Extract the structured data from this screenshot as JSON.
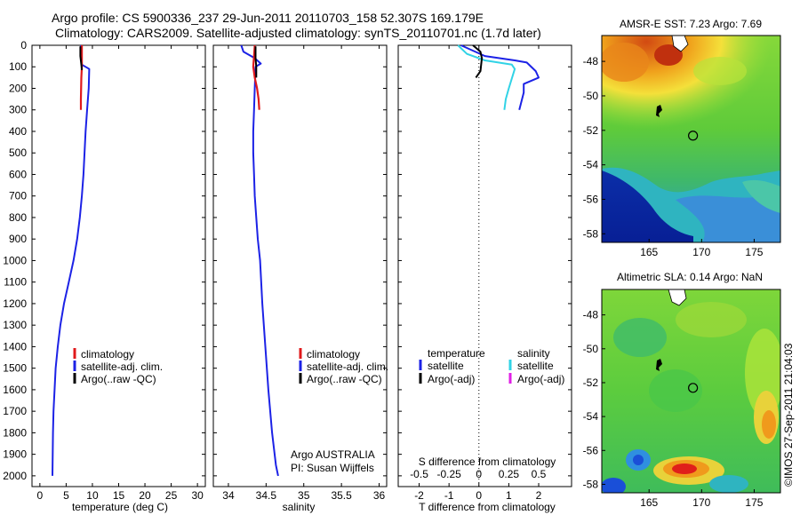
{
  "header": {
    "line1": "Argo profile: CS 5900336_237 29-Jun-2011 20110703_158 52.307S 169.179E",
    "line2": "Climatology: CARS2009. Satellite-adjusted climatology: synTS_20110701.nc (1.7d later)"
  },
  "credits": {
    "institution": "Argo AUSTRALIA",
    "pi": "PI: Susan Wijffels",
    "timestamp": "©IMOS 27-Sep-2011 21:04:03"
  },
  "colors": {
    "climatology": "#e0191b",
    "satellite": "#1c22e6",
    "argo": "#000000",
    "satellite_salinity": "#31d3e6",
    "argo_salinity": "#e01ee6"
  },
  "chart_data": [
    {
      "id": "temperature",
      "type": "line",
      "xlabel": "temperature (deg C)",
      "ylabel": "",
      "xlim": [
        -1.5,
        31.5
      ],
      "ylim": [
        2050,
        0
      ],
      "xticks": [
        0,
        5,
        10,
        15,
        20,
        25,
        30
      ],
      "yticks": [
        0,
        100,
        200,
        300,
        400,
        500,
        600,
        700,
        800,
        900,
        1000,
        1100,
        1200,
        1300,
        1400,
        1500,
        1600,
        1700,
        1800,
        1900,
        2000
      ],
      "legend": {
        "entries": [
          "climatology",
          "satellite-adj. clim.",
          "Argo(..raw -QC)"
        ],
        "placement": "lower-middle"
      },
      "series": [
        {
          "name": "satellite-adj. clim.",
          "color": "#1c22e6",
          "x": [
            7.8,
            7.9,
            8.0,
            9.4,
            9.3,
            9.0,
            8.7,
            8.5,
            8.3,
            8.0,
            7.6,
            7.1,
            6.4,
            5.5,
            4.6,
            3.9,
            3.4,
            3.0,
            2.8,
            2.6,
            2.5,
            2.4
          ],
          "y": [
            0,
            50,
            90,
            110,
            200,
            300,
            400,
            500,
            600,
            700,
            800,
            900,
            1000,
            1100,
            1200,
            1300,
            1400,
            1500,
            1600,
            1700,
            1800,
            2000
          ]
        },
        {
          "name": "climatology",
          "color": "#e0191b",
          "x": [
            8.0,
            8.0,
            7.9,
            7.8,
            7.8
          ],
          "y": [
            0,
            100,
            150,
            250,
            300
          ]
        },
        {
          "name": "Argo(..raw -QC)",
          "color": "#000000",
          "x": [
            7.7,
            7.7,
            7.9,
            8.0
          ],
          "y": [
            5,
            50,
            90,
            115
          ]
        }
      ]
    },
    {
      "id": "salinity",
      "type": "line",
      "xlabel": "salinity",
      "ylabel": "",
      "xlim": [
        33.8,
        36.1
      ],
      "ylim": [
        2050,
        0
      ],
      "xticks": [
        34,
        34.5,
        35,
        35.5,
        36
      ],
      "legend": {
        "entries": [
          "climatology",
          "satellite-adj. clim.",
          "Argo(..raw -QC)"
        ],
        "placement": "lower-middle"
      },
      "series": [
        {
          "name": "satellite-adj. clim.",
          "color": "#1c22e6",
          "x": [
            34.17,
            34.2,
            34.35,
            34.43,
            34.36,
            34.35,
            34.34,
            34.33,
            34.33,
            34.34,
            34.35,
            34.37,
            34.39,
            34.42,
            34.45,
            34.49,
            34.53,
            34.58,
            34.63,
            34.66
          ],
          "y": [
            0,
            30,
            60,
            85,
            100,
            200,
            300,
            400,
            500,
            600,
            700,
            800,
            900,
            1000,
            1200,
            1400,
            1600,
            1800,
            1950,
            2000
          ]
        },
        {
          "name": "climatology",
          "color": "#e0191b",
          "x": [
            34.35,
            34.34,
            34.33,
            34.35,
            34.38,
            34.4,
            34.41
          ],
          "y": [
            0,
            50,
            100,
            150,
            200,
            250,
            300
          ]
        },
        {
          "name": "Argo(..raw -QC)",
          "color": "#000000",
          "x": [
            34.36,
            34.36,
            34.37,
            34.37
          ],
          "y": [
            5,
            60,
            100,
            150
          ]
        }
      ]
    },
    {
      "id": "difference",
      "type": "line",
      "xlabel": "T difference from climatology",
      "xlabel2": "S difference from climatology",
      "ylabel": "",
      "xlim": [
        -2.7,
        3.1
      ],
      "ylim": [
        2050,
        0
      ],
      "xticks": [
        -2,
        -1,
        0,
        1,
        2
      ],
      "xticks2": [
        -0.5,
        -0.25,
        0,
        0.25,
        0.5
      ],
      "xticks2_labels": [
        "-0.5",
        "-0.25",
        "0",
        "0.25",
        "0.5"
      ],
      "legend_temperature": {
        "title": "temperature",
        "entries": [
          "satellite",
          "Argo(-adj)"
        ]
      },
      "legend_salinity": {
        "title": "salinity",
        "entries": [
          "satellite",
          "Argo(-adj)"
        ]
      },
      "series": [
        {
          "name": "satellite",
          "group": "temperature",
          "color": "#1c22e6",
          "x": [
            -0.6,
            0.2,
            1.2,
            1.6,
            1.9,
            2.0,
            1.5,
            1.5,
            1.35
          ],
          "y": [
            0,
            50,
            70,
            80,
            120,
            150,
            180,
            220,
            300
          ]
        },
        {
          "name": "satellite",
          "group": "salinity",
          "color": "#31d3e6",
          "x": [
            -0.7,
            -0.4,
            0.2,
            1.1,
            1.2,
            1.0,
            0.9,
            0.85
          ],
          "y": [
            0,
            40,
            70,
            90,
            110,
            200,
            250,
            300
          ]
        },
        {
          "name": "Argo(-adj)",
          "group": "temperature",
          "color": "#000000",
          "x": [
            -0.2,
            0.05,
            0.1,
            0.05,
            -0.1
          ],
          "y": [
            0,
            30,
            60,
            120,
            150
          ]
        }
      ]
    }
  ],
  "maps": [
    {
      "id": "sst",
      "title": "AMSR-E SST: 7.23 Argo: 7.69",
      "xlim": [
        160.5,
        177.5
      ],
      "ylim": [
        -58.5,
        -46.5
      ],
      "xticks": [
        165,
        170,
        175
      ],
      "yticks": [
        -48,
        -50,
        -52,
        -54,
        -56,
        -58
      ],
      "marker": {
        "lon": 169.179,
        "lat": -52.307
      }
    },
    {
      "id": "sla",
      "title": "Altimetric SLA: 0.14 Argo: NaN",
      "xlim": [
        160.5,
        177.5
      ],
      "ylim": [
        -58.5,
        -46.5
      ],
      "xticks": [
        165,
        170,
        175
      ],
      "yticks": [
        -48,
        -50,
        -52,
        -54,
        -56,
        -58
      ],
      "marker": {
        "lon": 169.179,
        "lat": -52.307
      }
    }
  ]
}
